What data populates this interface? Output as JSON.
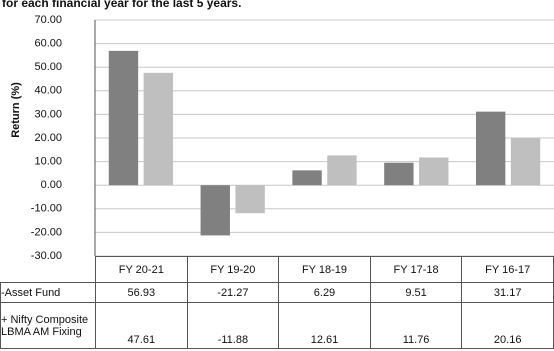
{
  "chart_data": {
    "type": "bar",
    "title": "for each financial year for the last 5 years.",
    "y_label": "Return (%)",
    "categories": [
      "FY 20-21",
      "FY 19-20",
      "FY 18-19",
      "FY 17-18",
      "FY 16-17"
    ],
    "series": [
      {
        "name": "-Asset Fund",
        "color": "#808080",
        "values": [
          56.93,
          -21.27,
          6.29,
          9.51,
          31.17
        ]
      },
      {
        "name": "+ Nifty Composite LBMA AM Fixing",
        "color": "#bfbfbf",
        "values": [
          47.61,
          -11.88,
          12.61,
          11.76,
          20.16
        ]
      }
    ],
    "ylim": [
      -30,
      70
    ],
    "yticks": [
      {
        "value": -30,
        "label": "-30.00"
      },
      {
        "value": -20,
        "label": "-20.00"
      },
      {
        "value": -10,
        "label": "-10.00"
      },
      {
        "value": 0,
        "label": "0.00"
      },
      {
        "value": 10,
        "label": "10.00"
      },
      {
        "value": 20,
        "label": "20.00"
      },
      {
        "value": 30,
        "label": "30.00"
      },
      {
        "value": 40,
        "label": "40.00"
      },
      {
        "value": 50,
        "label": "50.00"
      },
      {
        "value": 60,
        "label": "60.00"
      },
      {
        "value": 70,
        "label": "70.00"
      }
    ],
    "grid": true
  }
}
